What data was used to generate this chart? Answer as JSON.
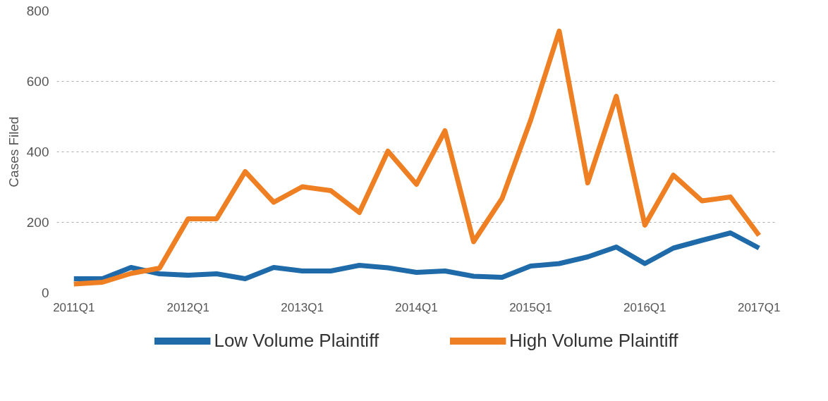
{
  "chart_data": {
    "type": "line",
    "ylabel": "Cases Filed",
    "categories": [
      "2011Q1",
      null,
      null,
      null,
      "2012Q1",
      null,
      null,
      null,
      "2013Q1",
      null,
      null,
      null,
      "2014Q1",
      null,
      null,
      null,
      "2015Q1",
      null,
      null,
      null,
      "2016Q1",
      null,
      null,
      null,
      "2017Q1"
    ],
    "series": [
      {
        "name": "Low Volume Plaintiff",
        "color": "#1f6aa8",
        "values": [
          40,
          40,
          72,
          54,
          50,
          54,
          40,
          72,
          62,
          62,
          78,
          71,
          58,
          62,
          47,
          44,
          76,
          83,
          102,
          130,
          83,
          127,
          149,
          170,
          127
        ]
      },
      {
        "name": "High Volume Plaintiff",
        "color": "#ee7f22",
        "values": [
          25,
          30,
          55,
          70,
          210,
          210,
          344,
          257,
          301,
          290,
          228,
          402,
          308,
          460,
          145,
          268,
          490,
          743,
          312,
          558,
          192,
          334,
          261,
          272,
          163
        ]
      }
    ],
    "ylim": [
      0,
      800
    ],
    "yticks": [
      0,
      200,
      400,
      600,
      800
    ],
    "grid": "y",
    "legend": "bottom",
    "line_style": "solid"
  }
}
